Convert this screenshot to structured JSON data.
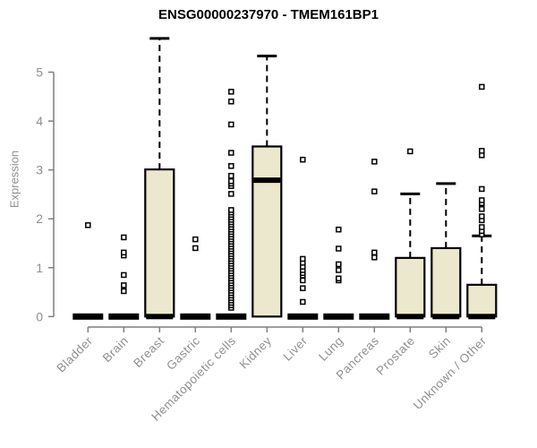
{
  "title": "ENSG00000237970 - TMEM161BP1",
  "chart_data": {
    "type": "boxplot",
    "title": "ENSG00000237970 - TMEM161BP1",
    "ylabel": "Expression",
    "ylim": [
      0,
      5.8
    ],
    "yticks": [
      0,
      1,
      2,
      3,
      4,
      5
    ],
    "grid": false,
    "legend": "none",
    "categories": [
      "Bladder",
      "Brain",
      "Breast",
      "Gastric",
      "Hematopoietic cells",
      "Kidney",
      "Liver",
      "Lung",
      "Pancreas",
      "Prostate",
      "Skin",
      "Unknown / Other"
    ],
    "series": [
      {
        "name": "Bladder",
        "q1": 0,
        "median": 0,
        "q3": 0,
        "whisker_low": 0,
        "whisker_high": 0,
        "outliers": [
          1.87
        ]
      },
      {
        "name": "Brain",
        "q1": 0,
        "median": 0,
        "q3": 0,
        "whisker_low": 0,
        "whisker_high": 0,
        "outliers": [
          0.52,
          0.64,
          0.85,
          1.25,
          1.31,
          1.62
        ]
      },
      {
        "name": "Breast",
        "q1": 0,
        "median": 0,
        "q3": 3.01,
        "whisker_low": 0,
        "whisker_high": 5.69,
        "outliers": []
      },
      {
        "name": "Gastric",
        "q1": 0,
        "median": 0,
        "q3": 0,
        "whisker_low": 0,
        "whisker_high": 0,
        "outliers": [
          1.4,
          1.58
        ]
      },
      {
        "name": "Hematopoietic cells",
        "q1": 0,
        "median": 0,
        "q3": 0,
        "whisker_low": 0,
        "whisker_high": 0,
        "outliers": [
          0.18,
          0.23,
          0.28,
          0.33,
          0.38,
          0.43,
          0.48,
          0.53,
          0.58,
          0.63,
          0.68,
          0.73,
          0.78,
          0.83,
          0.88,
          0.93,
          0.98,
          1.03,
          1.08,
          1.13,
          1.18,
          1.23,
          1.28,
          1.33,
          1.38,
          1.43,
          1.48,
          1.53,
          1.58,
          1.63,
          1.68,
          1.73,
          1.78,
          1.83,
          1.88,
          1.93,
          1.98,
          2.03,
          2.08,
          2.13,
          2.18,
          2.51,
          2.67,
          2.72,
          2.77,
          2.88,
          3.08,
          3.35,
          3.93,
          4.4,
          4.6
        ]
      },
      {
        "name": "Kidney",
        "q1": 0,
        "median": 2.79,
        "q3": 3.48,
        "whisker_low": 0,
        "whisker_high": 5.33,
        "outliers": []
      },
      {
        "name": "Liver",
        "q1": 0,
        "median": 0,
        "q3": 0,
        "whisker_low": 0,
        "whisker_high": 0,
        "outliers": [
          0.3,
          0.58,
          0.74,
          0.84,
          0.89,
          0.95,
          1.02,
          1.1,
          1.18,
          3.21
        ]
      },
      {
        "name": "Lung",
        "q1": 0,
        "median": 0,
        "q3": 0,
        "whisker_low": 0,
        "whisker_high": 0,
        "outliers": [
          0.74,
          0.78,
          0.95,
          1.07,
          1.39,
          1.78
        ]
      },
      {
        "name": "Pancreas",
        "q1": 0,
        "median": 0,
        "q3": 0,
        "whisker_low": 0,
        "whisker_high": 0,
        "outliers": [
          1.21,
          1.31,
          2.56,
          3.17
        ]
      },
      {
        "name": "Prostate",
        "q1": 0,
        "median": 0,
        "q3": 1.2,
        "whisker_low": 0,
        "whisker_high": 2.51,
        "outliers": [
          3.38
        ]
      },
      {
        "name": "Skin",
        "q1": 0,
        "median": 0,
        "q3": 1.4,
        "whisker_low": 0,
        "whisker_high": 2.72,
        "outliers": []
      },
      {
        "name": "Unknown / Other",
        "q1": 0,
        "median": 0,
        "q3": 0.65,
        "whisker_low": 0,
        "whisker_high": 1.65,
        "outliers": [
          1.68,
          1.75,
          1.83,
          1.97,
          2.05,
          2.2,
          2.32,
          2.38,
          2.61,
          3.3,
          3.39,
          4.7
        ]
      }
    ],
    "colors": {
      "box_fill": "#ece8cd",
      "box_stroke": "#000000",
      "axis": "#7f7f7f",
      "text": "#8f8f8f",
      "title": "#000000",
      "background": "#ffffff"
    }
  }
}
